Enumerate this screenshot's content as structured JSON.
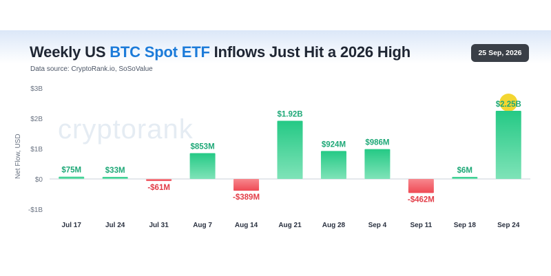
{
  "header": {
    "title_prefix": "Weekly US ",
    "title_highlight": "BTC Spot ETF",
    "title_suffix": " Inflows Just Hit a 2026 High",
    "subtitle": "Data source: CryptoRank.io, SoSoValue",
    "date_badge": "25 Sep, 2026"
  },
  "watermark": "cryptorank",
  "colors": {
    "positive": "#2ecf8f",
    "negative": "#f0525c",
    "positive_label": "#1ea877",
    "negative_label": "#e23d48",
    "highlight_marker": "#f2d21b"
  },
  "chart_data": {
    "type": "bar",
    "title": "Weekly US BTC Spot ETF Inflows Just Hit a 2026 High",
    "ylabel": "Net Flow, USD",
    "xlabel": "",
    "unit": "USD billions",
    "categories": [
      "Jul 17",
      "Jul 24",
      "Jul 31",
      "Aug 7",
      "Aug 14",
      "Aug 21",
      "Aug 28",
      "Sep 4",
      "Sep 11",
      "Sep 18",
      "Sep 24"
    ],
    "values": [
      0.075,
      0.033,
      -0.061,
      0.853,
      -0.389,
      1.92,
      0.924,
      0.986,
      -0.462,
      0.006,
      2.25
    ],
    "data_labels": [
      "$75M",
      "$33M",
      "-$61M",
      "$853M",
      "-$389M",
      "$1.92B",
      "$924M",
      "$986M",
      "-$462M",
      "$6M",
      "$2.25B"
    ],
    "ylim": [
      -1,
      3
    ],
    "yticks": [
      -1,
      0,
      1,
      2,
      3
    ],
    "ytick_labels": [
      "-$1B",
      "$0",
      "$1B",
      "$2B",
      "$3B"
    ],
    "grid": false,
    "highlight_category": "Sep 24"
  }
}
